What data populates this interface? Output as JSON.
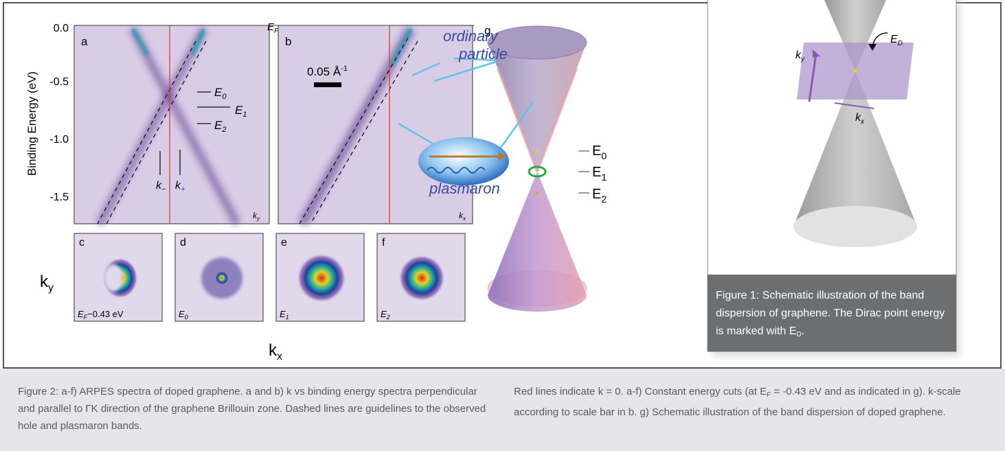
{
  "figure2": {
    "y_axis_label": "Binding Energy (eV)",
    "y_ticks": [
      "0.0",
      "-0.5",
      "-1.0",
      "-1.5"
    ],
    "panel_letters": [
      "a",
      "b",
      "c",
      "d",
      "e",
      "f",
      "g"
    ],
    "fermi_label": {
      "main": "E",
      "sub": "F"
    },
    "panel_a_levels": [
      {
        "main": "E",
        "sub": "0"
      },
      {
        "main": "E",
        "sub": "1"
      },
      {
        "main": "E",
        "sub": "2"
      }
    ],
    "panel_a_k": [
      {
        "main": "k",
        "sub": "−"
      },
      {
        "main": "k",
        "sub": "+"
      }
    ],
    "panel_a_axis": {
      "main": "k",
      "sub": "y"
    },
    "panel_b_axis": {
      "main": "k",
      "sub": "x"
    },
    "scale_bar": {
      "main": "0.05 Å",
      "sup": "-1"
    },
    "ordinary": [
      "ordinary",
      "particle"
    ],
    "plasmaron": "plasmaron",
    "cone_levels": [
      {
        "main": "E",
        "sub": "0"
      },
      {
        "main": "E",
        "sub": "1"
      },
      {
        "main": "E",
        "sub": "2"
      }
    ],
    "cuts": [
      {
        "main": "E",
        "sub": "F",
        "rest": "−0.43 eV"
      },
      {
        "main": "E",
        "sub": "0"
      },
      {
        "main": "E",
        "sub": "1"
      },
      {
        "main": "E",
        "sub": "2"
      }
    ],
    "cut_y_label": {
      "main": "k",
      "sub": "y"
    },
    "cut_x_label": {
      "main": "k",
      "sub": "x"
    },
    "caption_left": "Figure 2: a-f) ARPES spectra of doped graphene. a and b) k vs binding energy spectra perpendicular and parallel to ΓK direction of the graphene Brillouin zone. Dashed lines are guidelines to the observed hole and plasmaron bands.",
    "caption_right": [
      "Red lines indicate k = 0. a-f) Constant energy cuts (at E",
      "F",
      " = -0.43 eV and as indicated in g). k-scale according to scale bar in b. g) Schematic illustration of the band dispersion of doped graphene."
    ]
  },
  "figure1": {
    "ky": {
      "main": "k",
      "sub": "y"
    },
    "kx": {
      "main": "k",
      "sub": "x"
    },
    "dirac": {
      "main": "E",
      "sub": "D"
    },
    "caption": [
      "Figure 1: Schematic illustration of the band dispersion of graphene. The Dirac point energy is marked with E",
      "D",
      "."
    ]
  }
}
